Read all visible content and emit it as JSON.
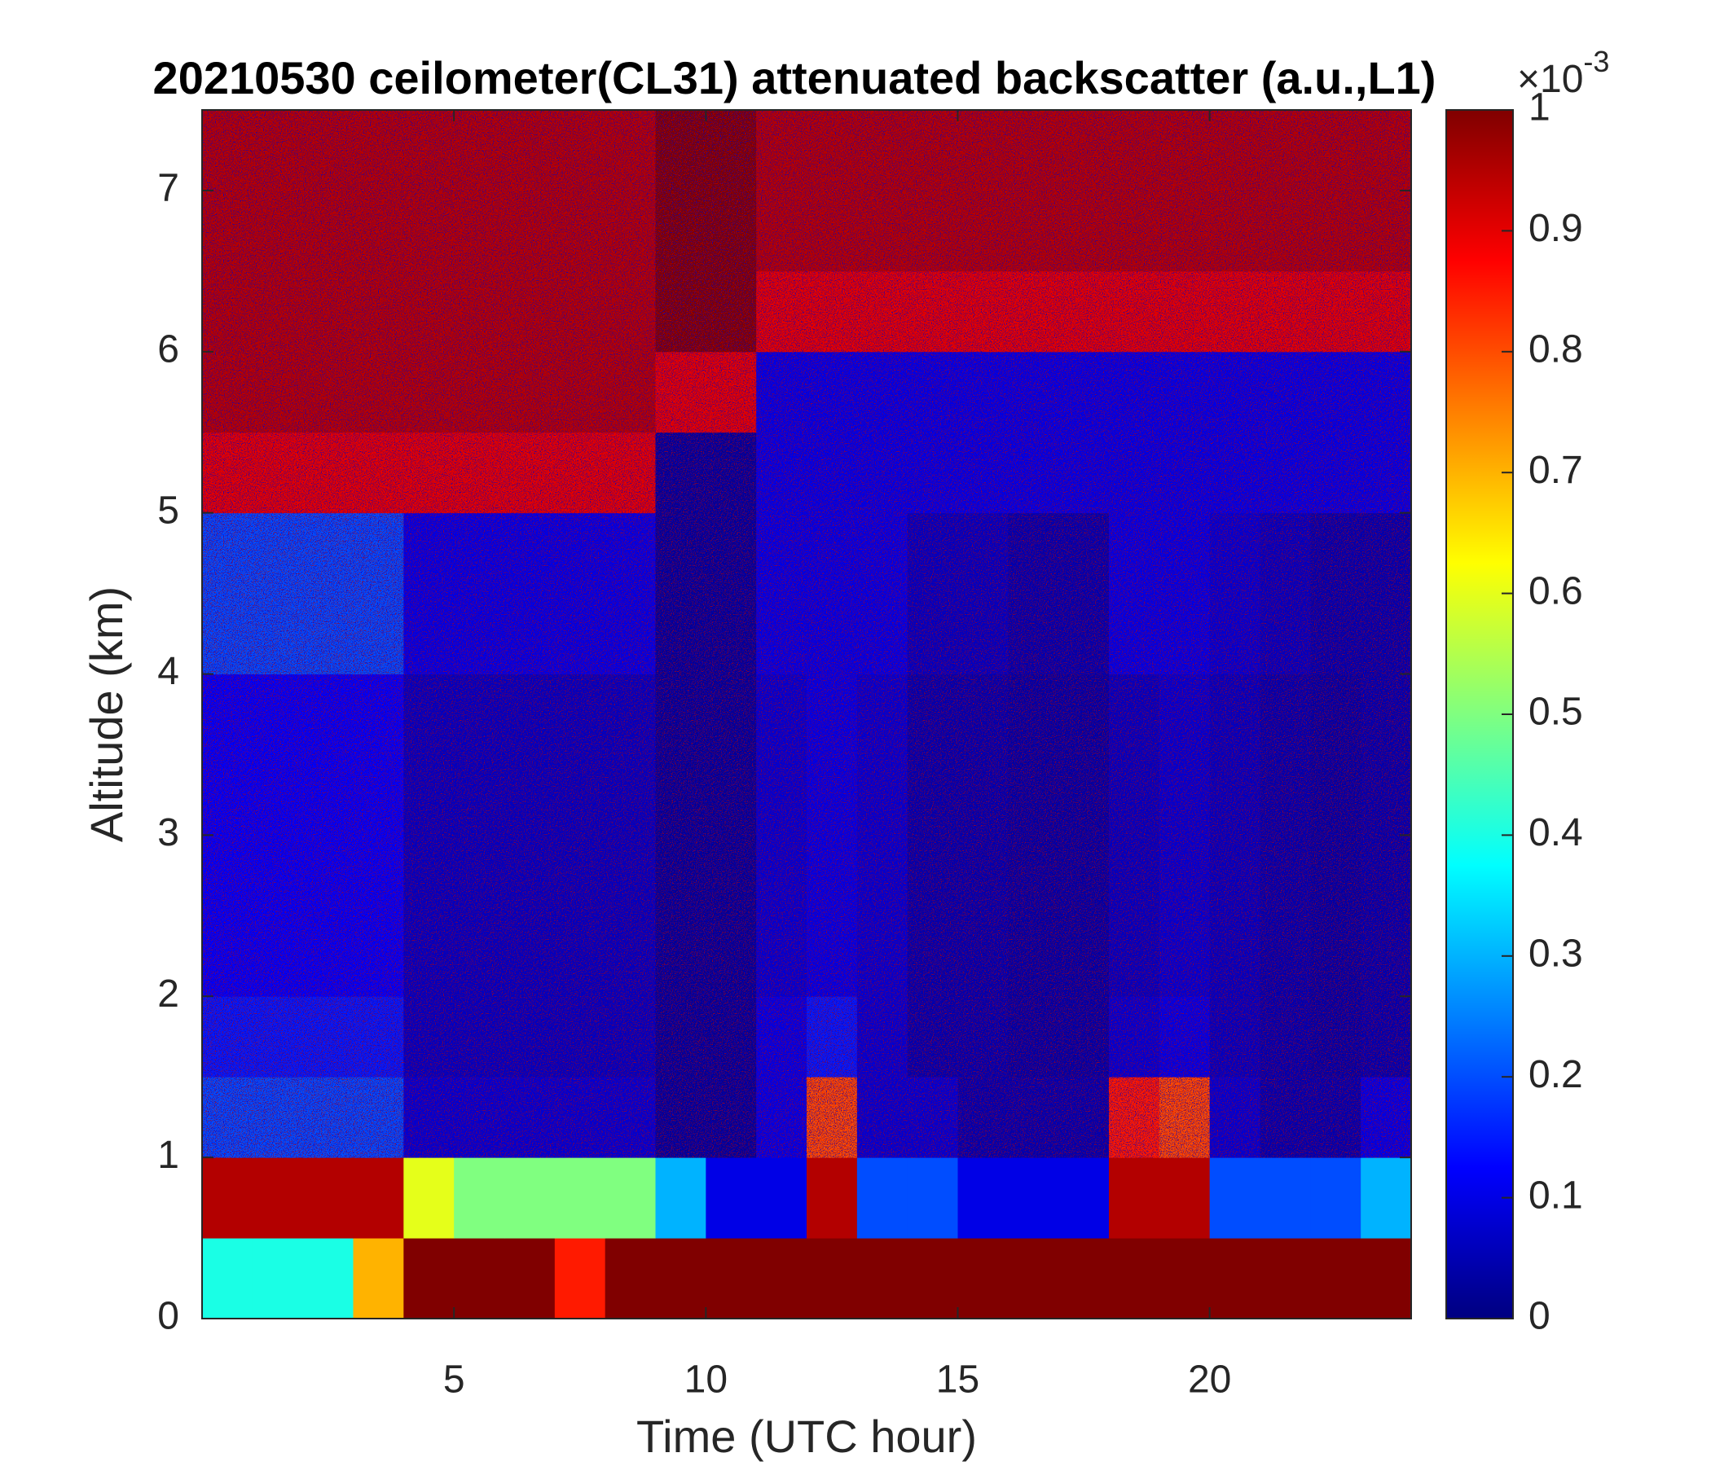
{
  "chart_data": {
    "type": "heatmap",
    "title": "20210530 ceilometer(CL31) attenuated backscatter (a.u.,L1)",
    "xlabel": "Time (UTC hour)",
    "ylabel": "Altitude (km)",
    "colorbar_exponent_base": "×10",
    "colorbar_exponent_power": "-3",
    "colormap": "jet",
    "x": [
      0,
      1,
      2,
      3,
      4,
      5,
      6,
      7,
      8,
      9,
      10,
      11,
      12,
      13,
      14,
      15,
      16,
      17,
      18,
      19,
      20,
      21,
      22,
      23,
      24
    ],
    "y": [
      0,
      0.5,
      1,
      1.5,
      2,
      2.5,
      3,
      3.5,
      4,
      4.5,
      5,
      5.5,
      6,
      6.5,
      7,
      7.5
    ],
    "values": [
      [
        0.4,
        0.4,
        0.4,
        0.7,
        1,
        1,
        1,
        0.85,
        1,
        1,
        1,
        1,
        1,
        1,
        1,
        1,
        1,
        1,
        1,
        1,
        1,
        1,
        1,
        1
      ],
      [
        0.95,
        0.95,
        0.95,
        0.95,
        0.6,
        0.5,
        0.5,
        0.5,
        0.5,
        0.3,
        0.1,
        0.1,
        0.95,
        0.2,
        0.2,
        0.1,
        0.1,
        0.1,
        0.95,
        0.95,
        0.2,
        0.2,
        0.2,
        0.3
      ],
      [
        0.2,
        0.2,
        0.2,
        0.2,
        0.08,
        0.08,
        0.08,
        0.08,
        0.08,
        0.02,
        0.02,
        0.1,
        0.8,
        0.08,
        0.08,
        0.04,
        0.04,
        0.04,
        0.85,
        0.8,
        0.08,
        0.04,
        0.04,
        0.1
      ],
      [
        0.15,
        0.15,
        0.15,
        0.15,
        0.06,
        0.06,
        0.06,
        0.06,
        0.06,
        0.02,
        0.02,
        0.1,
        0.15,
        0.08,
        0.04,
        0.04,
        0.03,
        0.03,
        0.08,
        0.1,
        0.06,
        0.04,
        0.03,
        0.04
      ],
      [
        0.12,
        0.12,
        0.12,
        0.12,
        0.06,
        0.06,
        0.06,
        0.06,
        0.06,
        0.02,
        0.02,
        0.08,
        0.1,
        0.08,
        0.04,
        0.04,
        0.03,
        0.03,
        0.06,
        0.08,
        0.06,
        0.04,
        0.03,
        0.04
      ],
      [
        0.12,
        0.12,
        0.12,
        0.12,
        0.06,
        0.06,
        0.06,
        0.06,
        0.06,
        0.02,
        0.02,
        0.08,
        0.1,
        0.08,
        0.04,
        0.04,
        0.03,
        0.03,
        0.06,
        0.08,
        0.06,
        0.04,
        0.03,
        0.04
      ],
      [
        0.12,
        0.12,
        0.12,
        0.12,
        0.06,
        0.06,
        0.06,
        0.06,
        0.06,
        0.02,
        0.02,
        0.08,
        0.1,
        0.08,
        0.04,
        0.04,
        0.03,
        0.03,
        0.06,
        0.08,
        0.06,
        0.04,
        0.03,
        0.04
      ],
      [
        0.12,
        0.12,
        0.12,
        0.12,
        0.06,
        0.06,
        0.06,
        0.06,
        0.06,
        0.02,
        0.02,
        0.08,
        0.1,
        0.08,
        0.04,
        0.04,
        0.03,
        0.03,
        0.06,
        0.08,
        0.06,
        0.04,
        0.03,
        0.04
      ],
      [
        0.2,
        0.2,
        0.2,
        0.2,
        0.1,
        0.1,
        0.1,
        0.1,
        0.1,
        0.02,
        0.02,
        0.1,
        0.1,
        0.1,
        0.06,
        0.06,
        0.04,
        0.04,
        0.1,
        0.1,
        0.08,
        0.06,
        0.04,
        0.04
      ],
      [
        0.2,
        0.2,
        0.2,
        0.2,
        0.1,
        0.1,
        0.1,
        0.1,
        0.1,
        0.02,
        0.02,
        0.1,
        0.1,
        0.1,
        0.06,
        0.06,
        0.04,
        0.04,
        0.1,
        0.1,
        0.08,
        0.06,
        0.04,
        0.04
      ],
      [
        0.9,
        0.9,
        0.9,
        0.9,
        0.9,
        0.9,
        0.9,
        0.9,
        0.9,
        0.02,
        0.02,
        0.1,
        0.1,
        0.1,
        0.1,
        0.1,
        0.1,
        0.1,
        0.1,
        0.1,
        0.1,
        0.1,
        0.1,
        0.1
      ],
      [
        0.95,
        0.95,
        0.95,
        0.95,
        0.95,
        0.95,
        0.95,
        0.95,
        0.95,
        0.9,
        0.9,
        0.1,
        0.1,
        0.1,
        0.1,
        0.1,
        0.1,
        0.1,
        0.1,
        0.1,
        0.1,
        0.1,
        0.1,
        0.1
      ],
      [
        0.95,
        0.95,
        0.95,
        0.95,
        0.95,
        0.95,
        0.95,
        0.95,
        0.95,
        1,
        1,
        0.9,
        0.9,
        0.9,
        0.9,
        0.9,
        0.9,
        0.9,
        0.9,
        0.9,
        0.9,
        0.9,
        0.9,
        0.9
      ],
      [
        0.95,
        0.95,
        0.95,
        0.95,
        0.95,
        0.95,
        0.95,
        0.95,
        0.95,
        1,
        1,
        0.95,
        0.95,
        0.95,
        0.95,
        0.95,
        0.95,
        0.95,
        0.95,
        0.95,
        0.95,
        0.95,
        0.95,
        0.95
      ],
      [
        0.95,
        0.95,
        0.95,
        0.95,
        0.95,
        0.95,
        0.95,
        0.95,
        0.95,
        1,
        1,
        0.95,
        0.95,
        0.95,
        0.95,
        0.95,
        0.95,
        0.95,
        0.95,
        0.95,
        0.95,
        0.95,
        0.95,
        0.95
      ]
    ],
    "xlim": [
      0,
      24
    ],
    "ylim": [
      0,
      7.5
    ],
    "xticks": [
      5,
      10,
      15,
      20
    ],
    "yticks": [
      0,
      1,
      2,
      3,
      4,
      5,
      6,
      7
    ],
    "clim": [
      0,
      1
    ],
    "cticks": [
      0,
      0.1,
      0.2,
      0.3,
      0.4,
      0.5,
      0.6,
      0.7,
      0.8,
      0.9,
      1
    ],
    "grid": false
  }
}
